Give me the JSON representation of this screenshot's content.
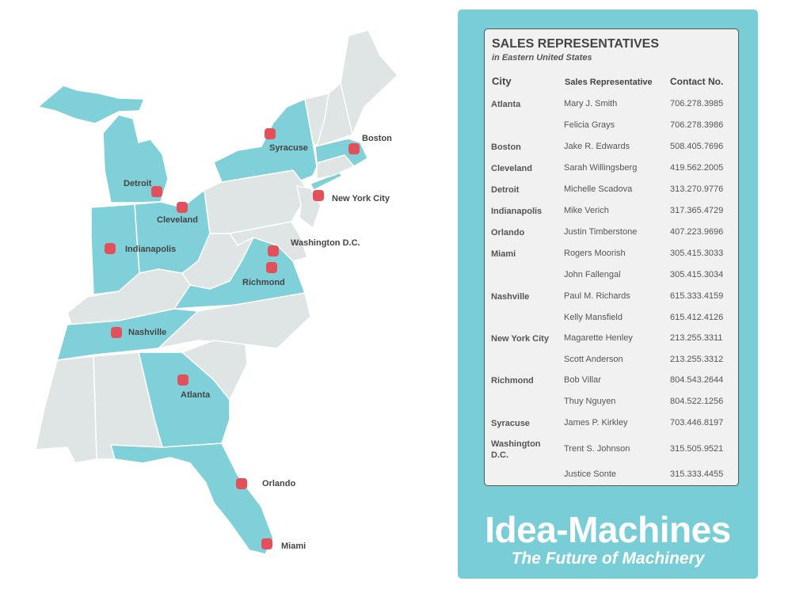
{
  "colors": {
    "highlight": "#80d0d9",
    "other": "#dee5e4",
    "marker": "#e2505b",
    "panel": "#79cdd6"
  },
  "map": {
    "cities": [
      {
        "name": "Syracuse"
      },
      {
        "name": "Boston"
      },
      {
        "name": "Detroit"
      },
      {
        "name": "Cleveland"
      },
      {
        "name": "New York City"
      },
      {
        "name": "Washington D.C."
      },
      {
        "name": "Richmond"
      },
      {
        "name": "Indianapolis"
      },
      {
        "name": "Nashville"
      },
      {
        "name": "Atlanta"
      },
      {
        "name": "Orlando"
      },
      {
        "name": "Miami"
      }
    ]
  },
  "panel": {
    "title": "SALES REPRESENTATIVES",
    "subtitle": "in Eastern United States",
    "headers": {
      "city": "City",
      "rep": "Sales Representative",
      "contact": "Contact No."
    },
    "rows": [
      {
        "city": "Atlanta",
        "rep": "Mary J. Smith",
        "contact": "706.278.3985"
      },
      {
        "city": "",
        "rep": "Felicia Grays",
        "contact": "706.278.3986"
      },
      {
        "city": "Boston",
        "rep": "Jake R. Edwards",
        "contact": "508.405.7696"
      },
      {
        "city": "Cleveland",
        "rep": "Sarah Willingsberg",
        "contact": "419.562.2005"
      },
      {
        "city": "Detroit",
        "rep": "Michelle Scadova",
        "contact": "313.270.9776"
      },
      {
        "city": "Indianapolis",
        "rep": "Mike Verich",
        "contact": "317.365.4729"
      },
      {
        "city": "Orlando",
        "rep": "Justin Timberstone",
        "contact": "407.223.9696"
      },
      {
        "city": "Miami",
        "rep": "Rogers Moorish",
        "contact": "305.415.3033"
      },
      {
        "city": "",
        "rep": "John Fallengal",
        "contact": "305.415.3034"
      },
      {
        "city": "Nashville",
        "rep": "Paul M. Richards",
        "contact": "615.333.4159"
      },
      {
        "city": "",
        "rep": "Kelly Mansfield",
        "contact": "615.412.4126"
      },
      {
        "city": "New York City",
        "rep": "Magarette Henley",
        "contact": "213.255.3311"
      },
      {
        "city": "",
        "rep": "Scott Anderson",
        "contact": "213.255.3312"
      },
      {
        "city": "Richmond",
        "rep": "Bob Villar",
        "contact": "804.543.2644"
      },
      {
        "city": "",
        "rep": "Thuy Nguyen",
        "contact": "804.522.1256"
      },
      {
        "city": "Syracuse",
        "rep": "James P. Kirkley",
        "contact": "703.446.8197"
      },
      {
        "city": "Washington D.C.",
        "rep": "Trent S. Johnson",
        "contact": "315.505.9521"
      },
      {
        "city": "",
        "rep": "Justice Sonte",
        "contact": "315.333.4455"
      }
    ],
    "brand": "Idea-Machines",
    "tagline": "The Future of Machinery"
  }
}
